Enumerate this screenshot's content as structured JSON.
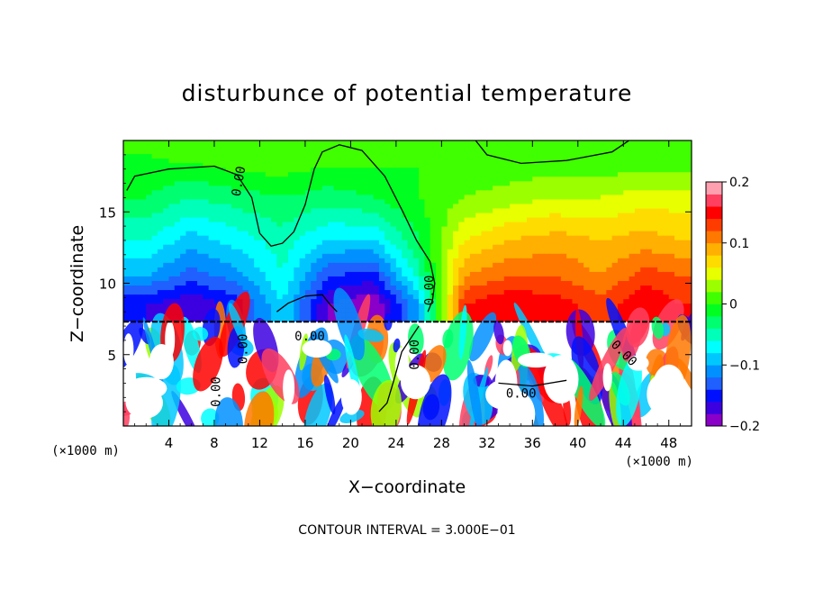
{
  "chart_data": {
    "type": "heatmap",
    "title": "disturbunce of potential temperature",
    "xlabel": "X−coordinate",
    "ylabel": "Z−coordinate",
    "x_unit": "(×1000 m)",
    "z_unit": "(×1000 m)",
    "xlim": [
      0,
      50
    ],
    "ylim": [
      0,
      20
    ],
    "x_ticks": [
      4,
      8,
      12,
      16,
      20,
      24,
      28,
      32,
      36,
      40,
      44,
      48
    ],
    "y_ticks": [
      5,
      10,
      15
    ],
    "contour_label": "0.00",
    "footer": "CONTOUR INTERVAL = 3.000E−01",
    "colorbar": {
      "range": [
        -0.2,
        0.2
      ],
      "ticks": [
        0.2,
        0.1,
        0,
        -0.1,
        -0.2
      ],
      "tick_labels": [
        "0.2",
        "0.1",
        "0",
        "−0.1",
        "−0.2"
      ],
      "colors": [
        "#8a00c8",
        "#3c00e0",
        "#0010ff",
        "#2060ff",
        "#0090ff",
        "#00c8ff",
        "#00ffff",
        "#00ffb8",
        "#00ff70",
        "#00ff20",
        "#40ff00",
        "#9cff00",
        "#e8ff00",
        "#ffdc00",
        "#ffb000",
        "#ff7800",
        "#ff3c00",
        "#ff0000",
        "#ff4060",
        "#ffa0b0"
      ]
    },
    "field": {
      "x_centers": [
        2,
        6,
        10,
        14,
        18,
        22,
        26,
        30,
        34,
        38,
        42,
        46,
        49
      ],
      "upper_rows": [
        {
          "z": 19,
          "values": [
            0.0,
            0.01,
            0.02,
            0.02,
            0.01,
            0.01,
            0.0,
            0.0,
            0.0,
            0.0,
            0.0,
            0.0,
            0.0
          ]
        },
        {
          "z": 16,
          "values": [
            -0.02,
            -0.04,
            -0.03,
            -0.02,
            -0.03,
            -0.02,
            0.0,
            0.02,
            0.03,
            0.04,
            0.04,
            0.05,
            0.05
          ]
        },
        {
          "z": 13,
          "values": [
            -0.06,
            -0.09,
            -0.07,
            -0.05,
            -0.08,
            -0.08,
            -0.02,
            0.06,
            0.08,
            0.09,
            0.08,
            0.09,
            0.08
          ]
        },
        {
          "z": 10.5,
          "values": [
            -0.1,
            -0.13,
            -0.11,
            -0.06,
            -0.14,
            -0.15,
            -0.05,
            0.1,
            0.12,
            0.12,
            0.1,
            0.13,
            0.12
          ]
        },
        {
          "z": 8.5,
          "values": [
            -0.16,
            -0.18,
            -0.15,
            -0.08,
            -0.18,
            -0.2,
            -0.1,
            0.14,
            0.16,
            0.15,
            0.13,
            0.16,
            0.14
          ]
        }
      ],
      "lower_layer_top_z": 7.3
    }
  }
}
